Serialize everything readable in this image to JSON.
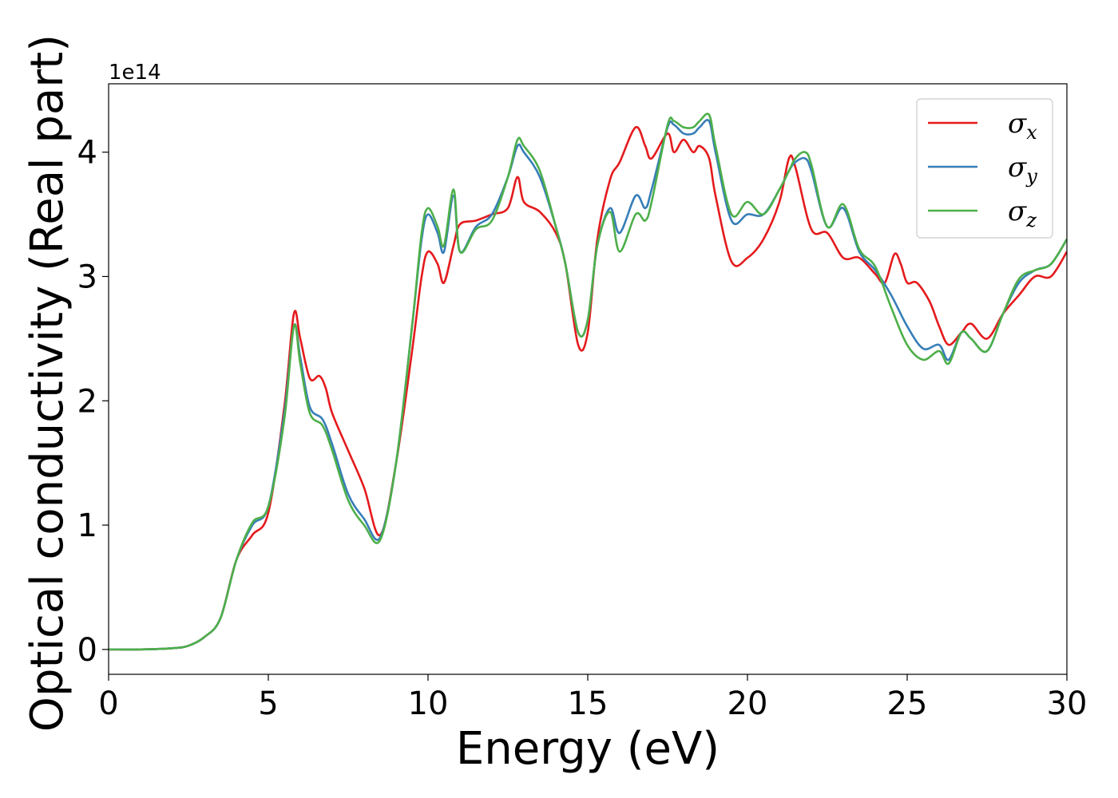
{
  "chart_data": {
    "type": "line",
    "xlabel": "Energy (eV)",
    "ylabel": "Optical conductivity (Real part)",
    "y_offset_label": "1e14",
    "xlim": [
      0,
      30
    ],
    "ylim": [
      -0.2,
      4.55
    ],
    "x_ticks": [
      0,
      5,
      10,
      15,
      20,
      25,
      30
    ],
    "x_tick_labels": [
      "0",
      "5",
      "10",
      "15",
      "20",
      "25",
      "30"
    ],
    "y_ticks": [
      0,
      1,
      2,
      3,
      4
    ],
    "y_tick_labels": [
      "0",
      "1",
      "2",
      "3",
      "4"
    ],
    "grid": false,
    "legend_position": "top-right",
    "series": [
      {
        "name": "σ",
        "subscript": "x",
        "color": "#e41a1c",
        "x": [
          0,
          1,
          2,
          2.5,
          3,
          3.5,
          4,
          4.5,
          5,
          5.5,
          5.8,
          6,
          6.3,
          6.6,
          6.8,
          7,
          7.5,
          8,
          8.5,
          9,
          9.5,
          9.8,
          10,
          10.3,
          10.5,
          10.8,
          11,
          11.5,
          12,
          12.5,
          12.8,
          13,
          13.5,
          14,
          14.3,
          14.7,
          15,
          15.3,
          15.7,
          16,
          16.5,
          16.8,
          17,
          17.5,
          17.7,
          18,
          18.3,
          18.5,
          18.8,
          19,
          19.5,
          20,
          20.5,
          21,
          21.3,
          21.5,
          22,
          22.5,
          23,
          23.5,
          24,
          24.3,
          24.6,
          24.8,
          25,
          25.3,
          25.7,
          26,
          26.3,
          26.7,
          27,
          27.5,
          28,
          28.5,
          29,
          29.5,
          30
        ],
        "values": [
          0,
          0,
          0.01,
          0.03,
          0.1,
          0.25,
          0.72,
          0.92,
          1.1,
          1.95,
          2.7,
          2.5,
          2.18,
          2.2,
          2.1,
          1.9,
          1.6,
          1.3,
          0.92,
          1.5,
          2.4,
          3.0,
          3.2,
          3.1,
          2.95,
          3.25,
          3.42,
          3.45,
          3.5,
          3.55,
          3.8,
          3.6,
          3.52,
          3.35,
          3.1,
          2.45,
          2.55,
          3.3,
          3.78,
          3.92,
          4.2,
          4.05,
          3.95,
          4.15,
          4.0,
          4.1,
          4.0,
          4.05,
          3.95,
          3.65,
          3.12,
          3.15,
          3.3,
          3.6,
          3.95,
          3.88,
          3.38,
          3.35,
          3.15,
          3.15,
          3.02,
          2.95,
          3.18,
          3.1,
          2.95,
          2.95,
          2.8,
          2.6,
          2.45,
          2.55,
          2.62,
          2.5,
          2.7,
          2.85,
          3.0,
          3.0,
          3.2
        ]
      },
      {
        "name": "σ",
        "subscript": "y",
        "color": "#377eb8",
        "x": [
          0,
          1,
          2,
          2.5,
          3,
          3.5,
          4,
          4.5,
          5,
          5.5,
          5.8,
          6,
          6.3,
          6.7,
          7,
          7.5,
          8,
          8.5,
          9,
          9.5,
          9.8,
          10,
          10.3,
          10.5,
          10.8,
          11,
          11.5,
          12,
          12.5,
          12.8,
          13,
          13.5,
          14,
          14.3,
          14.7,
          15,
          15.3,
          15.7,
          16,
          16.5,
          16.8,
          17,
          17.5,
          17.7,
          18,
          18.3,
          18.5,
          18.8,
          19,
          19.5,
          20,
          20.5,
          21,
          21.3,
          21.5,
          21.8,
          22,
          22.5,
          23,
          23.5,
          24,
          24.5,
          25,
          25.5,
          26,
          26.3,
          26.7,
          27,
          27.5,
          28,
          28.5,
          29,
          29.5,
          30
        ],
        "values": [
          0,
          0,
          0.01,
          0.03,
          0.1,
          0.25,
          0.72,
          1.0,
          1.15,
          1.9,
          2.6,
          2.35,
          1.95,
          1.85,
          1.65,
          1.25,
          1.05,
          0.9,
          1.5,
          2.6,
          3.3,
          3.5,
          3.35,
          3.2,
          3.65,
          3.2,
          3.4,
          3.5,
          3.8,
          4.05,
          4.0,
          3.8,
          3.4,
          3.1,
          2.55,
          2.65,
          3.25,
          3.55,
          3.35,
          3.65,
          3.55,
          3.7,
          4.2,
          4.22,
          4.15,
          4.15,
          4.2,
          4.25,
          4.0,
          3.45,
          3.5,
          3.5,
          3.7,
          3.85,
          3.92,
          3.95,
          3.85,
          3.4,
          3.55,
          3.2,
          3.05,
          2.85,
          2.6,
          2.42,
          2.45,
          2.33,
          2.55,
          2.5,
          2.4,
          2.7,
          2.95,
          3.05,
          3.1,
          3.3
        ]
      },
      {
        "name": "σ",
        "subscript": "z",
        "color": "#4daf4a",
        "x": [
          0,
          1,
          2,
          2.5,
          3,
          3.5,
          4,
          4.5,
          5,
          5.5,
          5.8,
          6,
          6.3,
          6.7,
          7,
          7.5,
          8,
          8.5,
          9,
          9.5,
          9.8,
          10,
          10.3,
          10.5,
          10.8,
          11,
          11.5,
          12,
          12.5,
          12.8,
          13,
          13.5,
          14,
          14.3,
          14.7,
          15,
          15.3,
          15.7,
          16,
          16.5,
          16.8,
          17,
          17.5,
          17.7,
          18,
          18.3,
          18.5,
          18.8,
          19,
          19.5,
          20,
          20.5,
          21,
          21.3,
          21.5,
          21.8,
          22,
          22.5,
          23,
          23.5,
          24,
          24.5,
          25,
          25.5,
          26,
          26.3,
          26.7,
          27,
          27.5,
          28,
          28.5,
          29,
          29.5,
          30
        ],
        "values": [
          0,
          0,
          0.01,
          0.03,
          0.1,
          0.25,
          0.72,
          1.02,
          1.15,
          1.85,
          2.6,
          2.3,
          1.9,
          1.8,
          1.6,
          1.2,
          1.0,
          0.88,
          1.5,
          2.6,
          3.35,
          3.55,
          3.4,
          3.25,
          3.7,
          3.2,
          3.38,
          3.45,
          3.8,
          4.1,
          4.05,
          3.85,
          3.4,
          3.1,
          2.55,
          2.65,
          3.25,
          3.52,
          3.2,
          3.5,
          3.45,
          3.6,
          4.22,
          4.25,
          4.2,
          4.2,
          4.25,
          4.3,
          4.05,
          3.5,
          3.6,
          3.5,
          3.7,
          3.85,
          3.95,
          4.0,
          3.9,
          3.4,
          3.58,
          3.22,
          3.08,
          2.75,
          2.45,
          2.33,
          2.4,
          2.3,
          2.55,
          2.5,
          2.4,
          2.7,
          2.98,
          3.05,
          3.1,
          3.3
        ]
      }
    ]
  }
}
